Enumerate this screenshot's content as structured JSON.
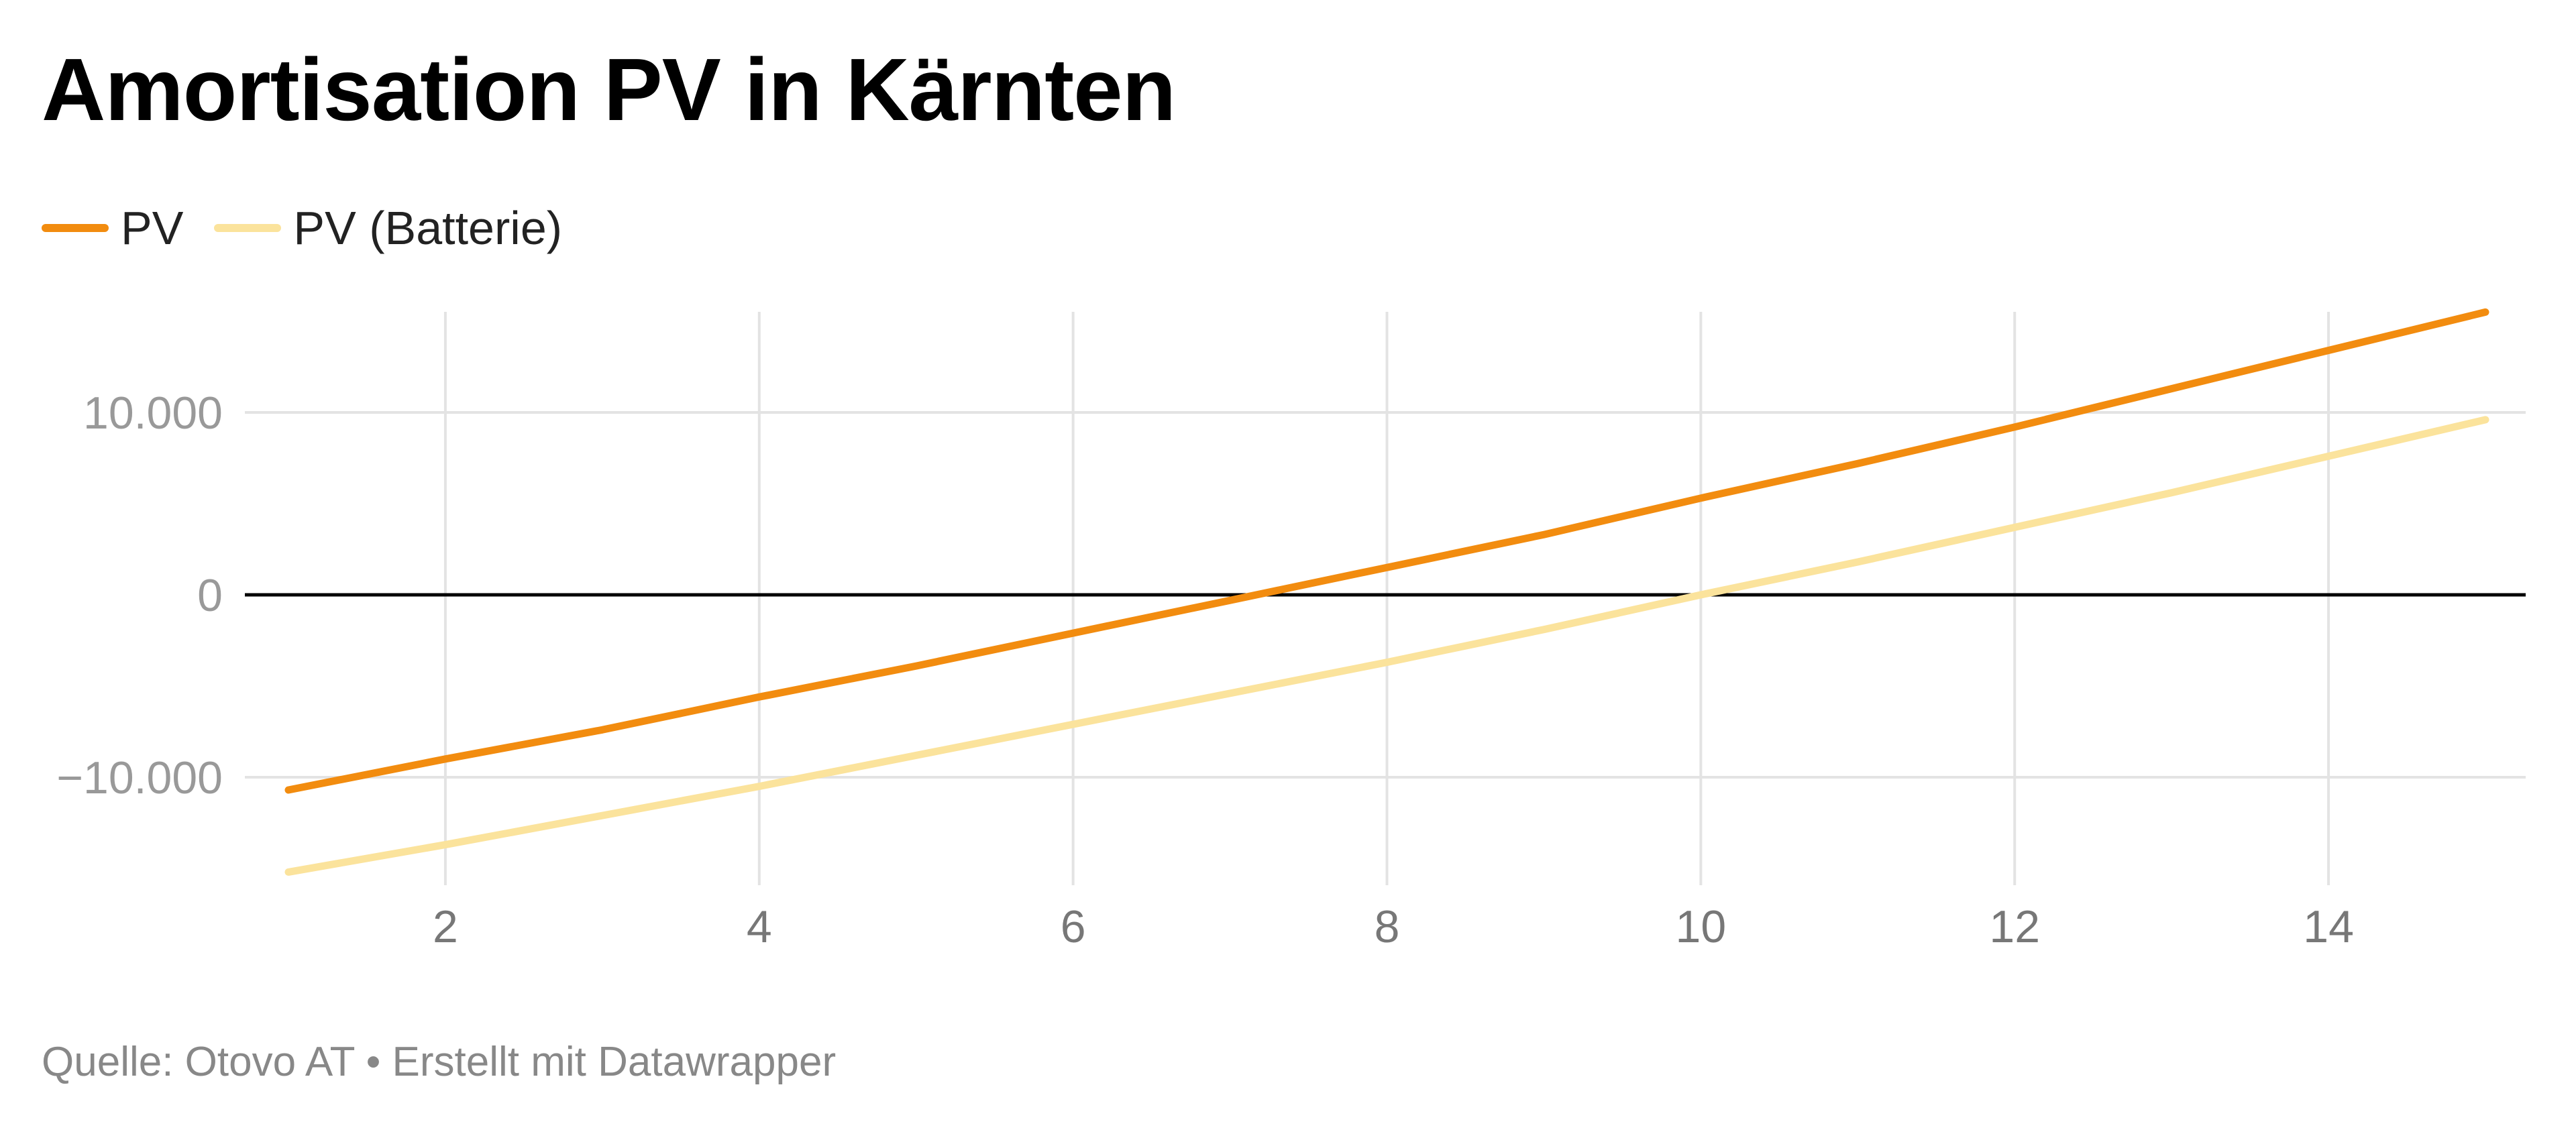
{
  "title": "Amortisation PV in Kärnten",
  "footer": "Quelle: Otovo AT • Erstellt mit Datawrapper",
  "legend_items": [
    {
      "label": "PV",
      "color": "#f28c0f"
    },
    {
      "label": "PV (Batterie)",
      "color": "#fbe39c"
    }
  ],
  "chart_data": {
    "type": "line",
    "xlim": [
      1,
      15
    ],
    "ylim": [
      -15500,
      15900
    ],
    "x_ticks": [
      2,
      4,
      6,
      8,
      10,
      12,
      14
    ],
    "x_tick_labels": [
      "2",
      "4",
      "6",
      "8",
      "10",
      "12",
      "14"
    ],
    "y_ticks": [
      -10000,
      0,
      10000
    ],
    "y_tick_labels": [
      "−10.000",
      "0",
      "10.000"
    ],
    "grid": true,
    "legend_position": "top-left",
    "series": [
      {
        "name": "PV",
        "color": "#f28c0f",
        "x": [
          1,
          2,
          3,
          4,
          5,
          6,
          7,
          8,
          9,
          10,
          11,
          12,
          13,
          14,
          15
        ],
        "values": [
          -10700,
          -9000,
          -7400,
          -5600,
          -3900,
          -2100,
          -300,
          1500,
          3300,
          5300,
          7200,
          9200,
          11300,
          13400,
          15500
        ]
      },
      {
        "name": "PV (Batterie)",
        "color": "#fbe39c",
        "x": [
          1,
          2,
          3,
          4,
          5,
          6,
          7,
          8,
          9,
          10,
          11,
          12,
          13,
          14,
          15
        ],
        "values": [
          -15200,
          -13700,
          -12100,
          -10500,
          -8800,
          -7100,
          -5400,
          -3700,
          -1900,
          0,
          1800,
          3700,
          5600,
          7600,
          9600
        ]
      }
    ]
  }
}
